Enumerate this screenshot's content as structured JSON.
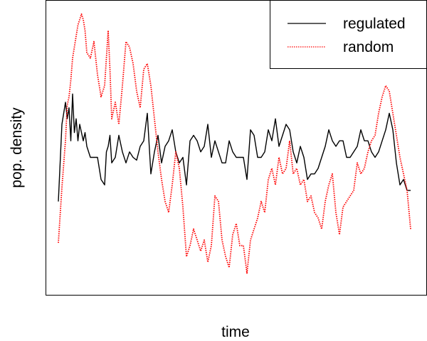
{
  "chart_data": {
    "type": "line",
    "title": "",
    "xlabel": "time",
    "ylabel": "pop. density",
    "xticks": "none",
    "yticks": "none",
    "grid": false,
    "legend": {
      "position": "top-right",
      "entries": [
        {
          "label": "regulated",
          "color": "#000000",
          "line_style": "solid"
        },
        {
          "label": "random",
          "color": "#ff0000",
          "line_style": "dotted"
        }
      ]
    },
    "xlim": [
      0,
      200
    ],
    "ylim": [
      0,
      100
    ],
    "series": [
      {
        "name": "regulated",
        "color": "#000000",
        "line_style": "solid",
        "x": [
          0,
          2,
          4,
          5,
          6,
          7,
          8,
          9,
          10,
          11,
          12,
          13,
          14,
          15,
          16,
          18,
          20,
          22,
          24,
          26,
          27,
          28,
          29,
          30,
          32,
          34,
          36,
          38,
          40,
          42,
          44,
          46,
          48,
          50,
          52,
          54,
          56,
          58,
          60,
          62,
          64,
          66,
          68,
          70,
          72,
          74,
          76,
          78,
          80,
          82,
          84,
          86,
          88,
          90,
          92,
          94,
          96,
          98,
          100,
          102,
          104,
          106,
          108,
          110,
          112,
          114,
          116,
          118,
          120,
          122,
          124,
          126,
          128,
          130,
          132,
          134,
          136,
          138,
          140,
          142,
          144,
          146,
          148,
          150,
          152,
          154,
          156,
          158,
          160,
          162,
          164,
          166,
          168,
          170,
          172,
          174,
          176,
          178,
          180,
          182,
          184,
          186,
          188,
          190,
          192,
          194,
          196,
          198
        ],
        "y": [
          30,
          58,
          66,
          60,
          64,
          52,
          69,
          55,
          60,
          52,
          58,
          55,
          52,
          55,
          50,
          46,
          46,
          46,
          38,
          36,
          48,
          50,
          54,
          44,
          46,
          54,
          48,
          44,
          48,
          46,
          45,
          50,
          52,
          62,
          40,
          48,
          54,
          44,
          50,
          52,
          56,
          48,
          44,
          46,
          36,
          52,
          54,
          52,
          48,
          50,
          58,
          46,
          52,
          48,
          44,
          44,
          52,
          48,
          46,
          46,
          46,
          38,
          56,
          54,
          46,
          46,
          48,
          56,
          52,
          60,
          50,
          54,
          58,
          56,
          48,
          44,
          50,
          46,
          38,
          40,
          40,
          42,
          46,
          50,
          56,
          52,
          50,
          52,
          52,
          46,
          46,
          48,
          50,
          56,
          52,
          52,
          48,
          46,
          48,
          52,
          56,
          62,
          56,
          44,
          36,
          38,
          34,
          34
        ]
      },
      {
        "name": "random",
        "color": "#ff0000",
        "line_style": "dotted",
        "x": [
          0,
          2,
          4,
          5,
          6,
          7,
          8,
          9,
          10,
          11,
          12,
          13,
          14,
          15,
          16,
          18,
          20,
          22,
          24,
          26,
          27,
          28,
          29,
          30,
          32,
          34,
          36,
          38,
          40,
          42,
          44,
          46,
          48,
          50,
          52,
          54,
          56,
          58,
          60,
          62,
          64,
          66,
          68,
          70,
          72,
          74,
          76,
          78,
          80,
          82,
          84,
          86,
          88,
          90,
          92,
          94,
          96,
          98,
          100,
          102,
          104,
          106,
          108,
          110,
          112,
          114,
          116,
          118,
          120,
          122,
          124,
          126,
          128,
          130,
          132,
          134,
          136,
          138,
          140,
          142,
          144,
          146,
          148,
          150,
          152,
          154,
          156,
          158,
          160,
          162,
          164,
          166,
          168,
          170,
          172,
          174,
          176,
          178,
          180,
          182,
          184,
          186,
          188,
          190,
          192,
          194,
          196,
          198
        ],
        "y": [
          15,
          35,
          52,
          65,
          68,
          74,
          82,
          86,
          90,
          94,
          96,
          98,
          96,
          92,
          84,
          82,
          88,
          76,
          68,
          72,
          82,
          92,
          78,
          60,
          66,
          58,
          72,
          88,
          86,
          80,
          70,
          64,
          78,
          80,
          72,
          60,
          48,
          38,
          30,
          26,
          36,
          48,
          42,
          28,
          10,
          14,
          20,
          16,
          12,
          16,
          8,
          14,
          32,
          30,
          16,
          10,
          6,
          18,
          22,
          14,
          14,
          4,
          16,
          20,
          24,
          30,
          26,
          38,
          42,
          36,
          46,
          40,
          42,
          52,
          40,
          42,
          36,
          38,
          30,
          32,
          26,
          24,
          20,
          30,
          36,
          40,
          26,
          18,
          28,
          30,
          32,
          34,
          44,
          40,
          42,
          48,
          52,
          54,
          62,
          68,
          72,
          70,
          62,
          54,
          46,
          40,
          34,
          20
        ]
      }
    ]
  }
}
